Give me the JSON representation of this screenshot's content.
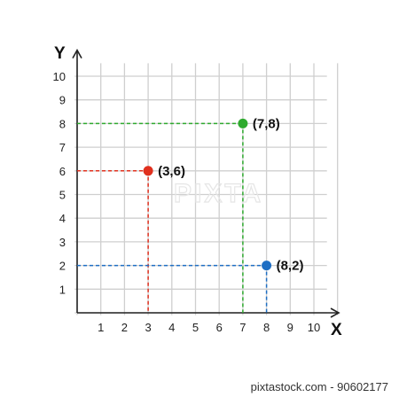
{
  "chart_data": {
    "type": "scatter",
    "xlabel": "X",
    "ylabel": "Y",
    "xlim": [
      0,
      10
    ],
    "ylim": [
      0,
      10
    ],
    "x_ticks": [
      1,
      2,
      3,
      4,
      5,
      6,
      7,
      8,
      9,
      10
    ],
    "y_ticks": [
      1,
      2,
      3,
      4,
      5,
      6,
      7,
      8,
      9,
      10
    ],
    "grid": true,
    "points": [
      {
        "x": 3,
        "y": 6,
        "label": "(3,6)",
        "color": "#e0301e"
      },
      {
        "x": 7,
        "y": 8,
        "label": "(7,8)",
        "color": "#2eaa2e"
      },
      {
        "x": 8,
        "y": 2,
        "label": "(8,2)",
        "color": "#1f6fc4"
      }
    ]
  },
  "watermark": "PIXTA",
  "credit": "pixtastock.com - 90602177"
}
